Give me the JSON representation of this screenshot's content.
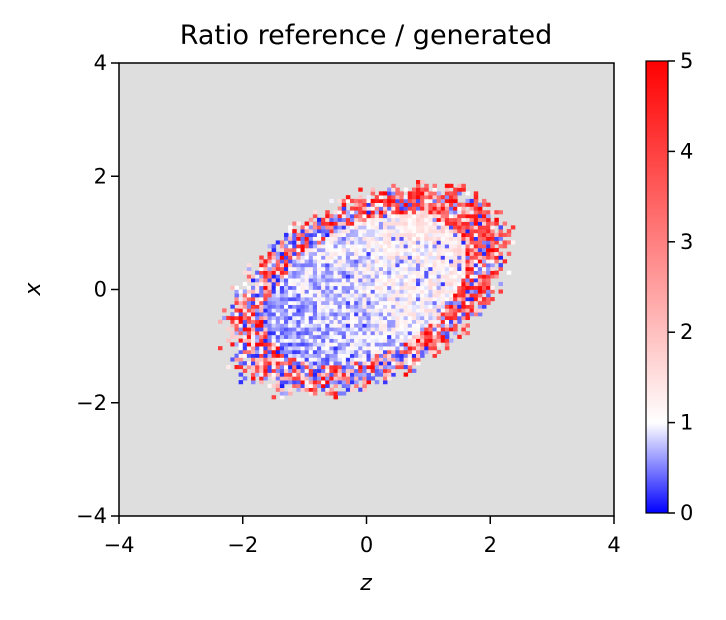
{
  "chart_data": {
    "type": "heatmap",
    "title": "Ratio reference / generated",
    "xlabel": "z",
    "ylabel": "x",
    "xlim": [
      -4,
      4
    ],
    "ylim": [
      -4,
      4
    ],
    "x_ticks": [
      "−4",
      "−2",
      "0",
      "2",
      "4"
    ],
    "y_ticks": [
      "−4",
      "−2",
      "0",
      "2",
      "4"
    ],
    "x_tick_values": [
      -4,
      -2,
      0,
      2,
      4
    ],
    "y_tick_values": [
      -4,
      -2,
      0,
      2,
      4
    ],
    "background_color": "#dedede",
    "colorbar": {
      "min": 0,
      "max": 5,
      "center": 1,
      "ticks": [
        "0",
        "1",
        "2",
        "3",
        "4",
        "5"
      ],
      "tick_values": [
        0,
        1,
        2,
        3,
        4,
        5
      ],
      "colors": [
        "#0000ff",
        "#ffffff",
        "#ff0000"
      ]
    },
    "bins": 120,
    "distribution": {
      "shape": "tilted-ellipse",
      "center": [
        0.0,
        0.0
      ],
      "semi_major": 2.45,
      "semi_minor": 1.55,
      "angle_deg": 32,
      "inner_trend": "bluish toward lower-left, reddish toward upper-right",
      "edge_behavior": "noisy mix of strong red and blue near the boundary"
    }
  }
}
